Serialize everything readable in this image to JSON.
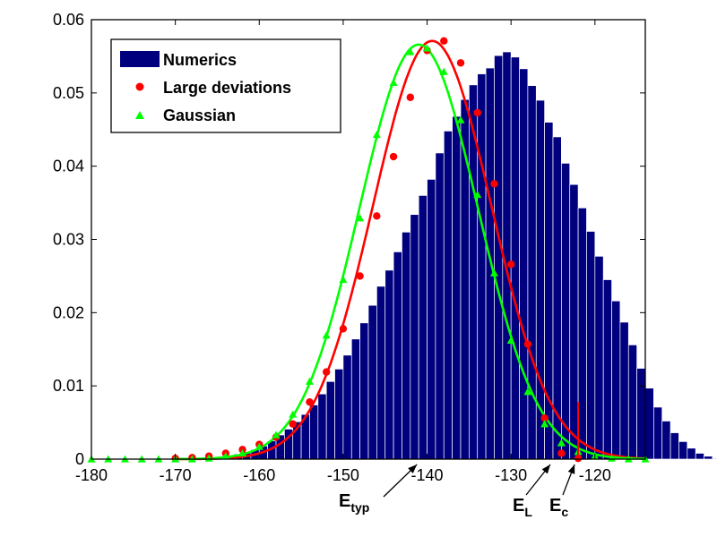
{
  "chart_data": {
    "type": "bar",
    "xlim": [
      -180,
      -114
    ],
    "ylim": [
      0,
      0.06
    ],
    "x_ticks": [
      "-180",
      "-170",
      "-160",
      "-150",
      "-140",
      "-130",
      "-120"
    ],
    "y_ticks": [
      "0",
      "0.01",
      "0.02",
      "0.03",
      "0.04",
      "0.05",
      "0.06"
    ],
    "x_tick_values": [
      -180,
      -170,
      -160,
      -150,
      -140,
      -130,
      -120
    ],
    "y_tick_values": [
      0,
      0.01,
      0.02,
      0.03,
      0.04,
      0.05,
      0.06
    ],
    "grid": false,
    "legend_position": "top-left",
    "legend": [
      {
        "label": "Numerics",
        "marker": "bar",
        "color": "#00007f"
      },
      {
        "label": "Large deviations",
        "marker": "circle",
        "color": "#ff0000"
      },
      {
        "label": "Gaussian",
        "marker": "triangle",
        "color": "#00ff00"
      }
    ],
    "histogram": {
      "name": "Numerics",
      "color": "#00007f",
      "bin_width": 1,
      "bins_from": -167,
      "values": [
        0.0001,
        0.0002,
        0.0003,
        0.0005,
        0.0007,
        0.001,
        0.0013,
        0.0018,
        0.0025,
        0.0033,
        0.0041,
        0.0051,
        0.0061,
        0.0074,
        0.0089,
        0.0106,
        0.0123,
        0.0142,
        0.0164,
        0.0186,
        0.021,
        0.0236,
        0.0258,
        0.0283,
        0.031,
        0.0334,
        0.036,
        0.0382,
        0.0418,
        0.0448,
        0.0468,
        0.0491,
        0.0511,
        0.0526,
        0.0534,
        0.0551,
        0.0556,
        0.0549,
        0.0533,
        0.051,
        0.049,
        0.046,
        0.044,
        0.0404,
        0.0375,
        0.0343,
        0.0311,
        0.0277,
        0.0245,
        0.0216,
        0.0187,
        0.0156,
        0.0124,
        0.0097,
        0.0071,
        0.0052,
        0.0036,
        0.0024,
        0.0015,
        0.0008,
        0.0004,
        0.0001
      ]
    },
    "series": [
      {
        "name": "Large deviations",
        "color": "#ff0000",
        "marker": "circle",
        "curve": {
          "mu": -139.4,
          "sigma": 7.05,
          "amp": 0.0571
        },
        "x": [
          -170,
          -168,
          -166,
          -164,
          -162,
          -160,
          -158,
          -156,
          -154,
          -152,
          -150,
          -148,
          -146,
          -144,
          -142,
          -140,
          -138,
          -136,
          -134,
          -132,
          -130,
          -128,
          -126,
          -124,
          -122
        ],
        "values": [
          0.0001,
          0.0002,
          0.0004,
          0.0008,
          0.0013,
          0.002,
          0.003,
          0.0048,
          0.0078,
          0.0119,
          0.0178,
          0.025,
          0.0332,
          0.0413,
          0.0494,
          0.0558,
          0.0571,
          0.0541,
          0.0473,
          0.0376,
          0.0266,
          0.0157,
          0.0056,
          0.0008,
          0.0001
        ]
      },
      {
        "name": "Gaussian",
        "color": "#00ff00",
        "marker": "triangle",
        "curve": {
          "mu": -141.0,
          "sigma": 7.05,
          "amp": 0.0566
        },
        "x": [
          -180,
          -178,
          -176,
          -174,
          -172,
          -170,
          -168,
          -166,
          -164,
          -162,
          -160,
          -158,
          -156,
          -154,
          -152,
          -150,
          -148,
          -146,
          -144,
          -142,
          -140,
          -138,
          -136,
          -134,
          -132,
          -130,
          -128,
          -126,
          -124,
          -122,
          -120,
          -118,
          -116,
          -114
        ],
        "values": [
          0.0,
          0.0,
          0.0,
          0.0,
          0.0,
          0.0,
          0.0,
          0.0001,
          0.0004,
          0.0008,
          0.0017,
          0.0033,
          0.0061,
          0.0106,
          0.0169,
          0.0245,
          0.0329,
          0.0443,
          0.0514,
          0.0556,
          0.0561,
          0.0529,
          0.0463,
          0.0361,
          0.0254,
          0.0162,
          0.0092,
          0.0048,
          0.0022,
          0.001,
          0.0004,
          0.0001,
          0.0,
          0.0
        ]
      }
    ],
    "annotations": [
      {
        "main": "E",
        "sub": "typ",
        "x": -141
      },
      {
        "main": "E",
        "sub": "L",
        "x": -125
      },
      {
        "main": "E",
        "sub": "c",
        "x": -122
      }
    ],
    "cutoff_marker": {
      "x": -122,
      "y": 0.0078,
      "color": "#ff0000"
    }
  }
}
